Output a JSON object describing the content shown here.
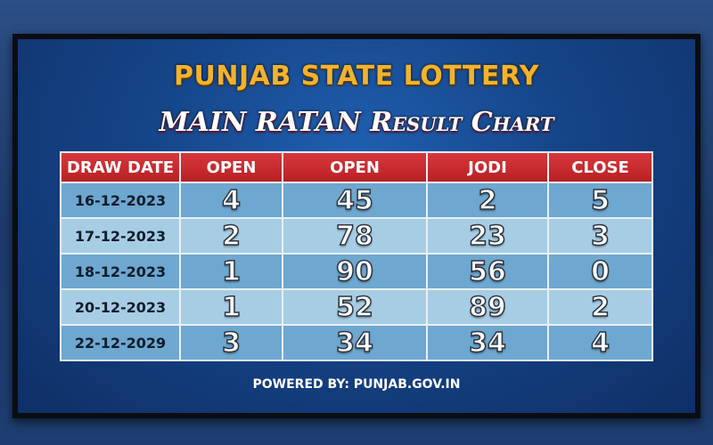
{
  "title": "PUNJAB STATE LOTTERY",
  "subtitle": "MAIN RATAN Result Chart",
  "table": {
    "headers": [
      "DRAW DATE",
      "OPEN",
      "OPEN",
      "JODI",
      "CLOSE"
    ],
    "rows": [
      [
        "16-12-2023",
        "4",
        "45",
        "2",
        "5"
      ],
      [
        "17-12-2023",
        "2",
        "78",
        "23",
        "3"
      ],
      [
        "18-12-2023",
        "1",
        "90",
        "56",
        "0"
      ],
      [
        "20-12-2023",
        "1",
        "52",
        "89",
        "2"
      ],
      [
        "22-12-2029",
        "3",
        "34",
        "34",
        "4"
      ]
    ]
  },
  "footer": "POWERED BY: PUNJAB.GOV.IN",
  "colors": {
    "title": "#f2b22e",
    "header": "#c8282c",
    "row_dark": "#6ea7cf",
    "row_light": "#a7cde5",
    "background": "#154487"
  }
}
